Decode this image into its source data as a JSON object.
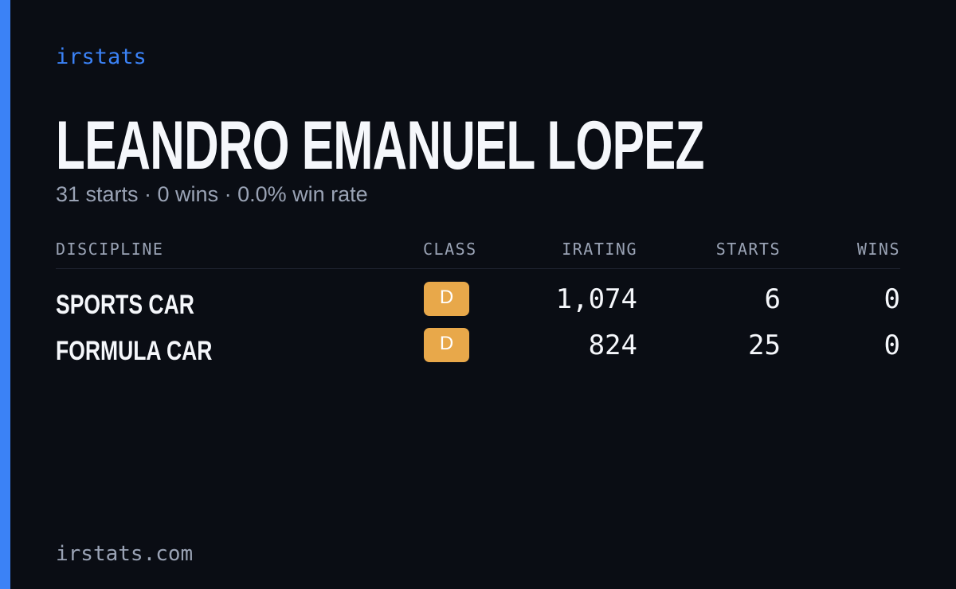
{
  "brand": "irstats",
  "header": {
    "title": "LEANDRO EMANUEL LOPEZ",
    "subtitle": "31 starts · 0 wins · 0.0% win rate"
  },
  "table": {
    "headers": [
      "DISCIPLINE",
      "CLASS",
      "IRATING",
      "STARTS",
      "WINS"
    ],
    "rows": [
      [
        "SPORTS CAR",
        "D",
        "1,074",
        "6",
        "0"
      ],
      [
        "FORMULA CAR",
        "D",
        "824",
        "25",
        "0"
      ]
    ]
  },
  "footer": "irstats.com"
}
